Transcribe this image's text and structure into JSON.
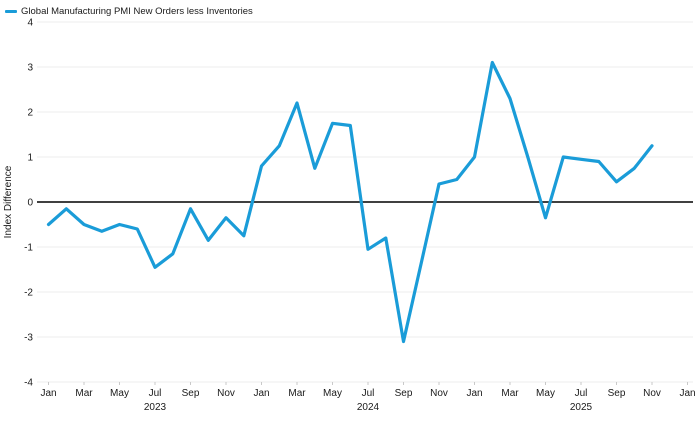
{
  "legend": {
    "label": "Global Manufacturing PMI New Orders less Inventories"
  },
  "colors": {
    "line": "#1A9CD8",
    "grid": "#ECECEC",
    "axis": "#DEDEDE",
    "tick": "#C9C9C9",
    "zero_line": "#000000",
    "text": "#1A1A1A",
    "background": "#FFFFFF"
  },
  "chart_data": {
    "type": "line",
    "title": "",
    "xlabel": "",
    "ylabel": "Index Difference",
    "ylim": [
      -4,
      4
    ],
    "grid": "horizontal",
    "legend_position": "top-left",
    "x_axis": {
      "tick_labels": [
        "Jan",
        "Mar",
        "May",
        "Jul",
        "Sep",
        "Nov",
        "Jan",
        "Mar",
        "May",
        "Jul",
        "Sep",
        "Nov",
        "Jan",
        "Mar",
        "May",
        "Jul",
        "Sep",
        "Nov",
        "Jan"
      ],
      "tick_month_indices": [
        0,
        2,
        4,
        6,
        8,
        10,
        12,
        14,
        16,
        18,
        20,
        22,
        24,
        26,
        28,
        30,
        32,
        34,
        36
      ],
      "year_labels": [
        {
          "label": "2023",
          "month_index": 6
        },
        {
          "label": "2024",
          "month_index": 18
        },
        {
          "label": "2025",
          "month_index": 30
        }
      ],
      "axis_span_months": 36
    },
    "y_axis": {
      "title": "Index Difference",
      "ticks": [
        4,
        3,
        2,
        1,
        0,
        -1,
        -2,
        -3,
        -4
      ]
    },
    "series": [
      {
        "name": "Global Manufacturing PMI New Orders less Inventories",
        "color": "#1A9CD8",
        "months": [
          "2023-01",
          "2023-02",
          "2023-03",
          "2023-04",
          "2023-05",
          "2023-06",
          "2023-07",
          "2023-08",
          "2023-09",
          "2023-10",
          "2023-11",
          "2023-12",
          "2024-01",
          "2024-02",
          "2024-03",
          "2024-04",
          "2024-05",
          "2024-06",
          "2024-07",
          "2024-08",
          "2024-09",
          "2024-10",
          "2024-11",
          "2024-12",
          "2025-01",
          "2025-02",
          "2025-03",
          "2025-04",
          "2025-05",
          "2025-06",
          "2025-07",
          "2025-08",
          "2025-09",
          "2025-10",
          "2025-11"
        ],
        "values": [
          -0.5,
          -0.15,
          -0.5,
          -0.65,
          -0.5,
          -0.6,
          -1.45,
          -1.15,
          -0.15,
          -0.85,
          -0.35,
          -0.75,
          0.8,
          1.25,
          2.2,
          0.75,
          1.75,
          1.7,
          -1.05,
          -0.8,
          -3.1,
          -1.35,
          0.4,
          0.5,
          1.0,
          3.1,
          2.3,
          1.0,
          -0.35,
          1.0,
          0.95,
          0.9,
          0.45,
          0.75,
          1.25
        ]
      }
    ]
  }
}
